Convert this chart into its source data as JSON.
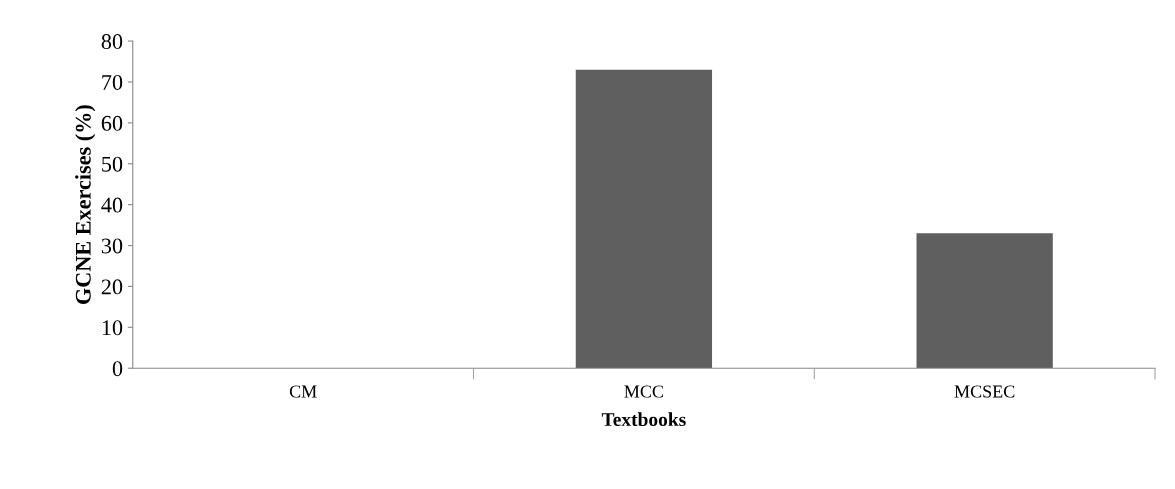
{
  "chart_data": {
    "type": "bar",
    "categories": [
      "CM",
      "MCC",
      "MCSEC"
    ],
    "values": [
      0,
      73,
      33
    ],
    "color": "#5f5f5f",
    "xlabel": "Textbooks",
    "ylabel": "GCNE Exercises (%)",
    "ylim": [
      0,
      80
    ],
    "yticks": [
      0,
      10,
      20,
      30,
      40,
      50,
      60,
      70,
      80
    ],
    "grid": false,
    "legend": false
  }
}
